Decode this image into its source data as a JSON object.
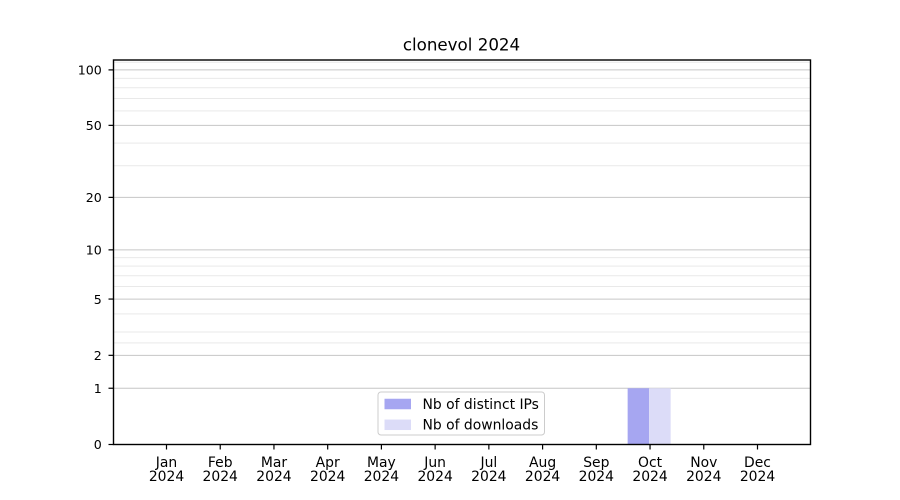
{
  "chart_data": {
    "type": "bar",
    "title": "clonevol 2024",
    "categories": [
      "Jan",
      "Feb",
      "Mar",
      "Apr",
      "May",
      "Jun",
      "Jul",
      "Aug",
      "Sep",
      "Oct",
      "Nov",
      "Dec"
    ],
    "category_year": "2024",
    "series": [
      {
        "name": "Nb of distinct IPs",
        "color": "#a6a6f1",
        "values": [
          0,
          0,
          0,
          0,
          0,
          0,
          0,
          0,
          0,
          1,
          0,
          0
        ]
      },
      {
        "name": "Nb of downloads",
        "color": "#dcdcf8",
        "values": [
          0,
          0,
          0,
          0,
          0,
          0,
          0,
          0,
          0,
          1,
          0,
          0
        ]
      }
    ],
    "xlabel": "",
    "ylabel": "",
    "yscale": "log1p",
    "ylim": [
      0,
      113
    ],
    "yticks": [
      0,
      1,
      2,
      5,
      10,
      20,
      50,
      100
    ],
    "yticks_minor": [
      2.5,
      3,
      4,
      6,
      7,
      8,
      9,
      30,
      40,
      60,
      70,
      80,
      90,
      110
    ],
    "grid": "on",
    "legend_position": "lower center",
    "colors": {
      "axis": "#000000",
      "grid_major": "#c6c6c6",
      "grid_minor": "#e9e9e9",
      "legend_border": "#cccccc",
      "background": "#ffffff"
    }
  }
}
